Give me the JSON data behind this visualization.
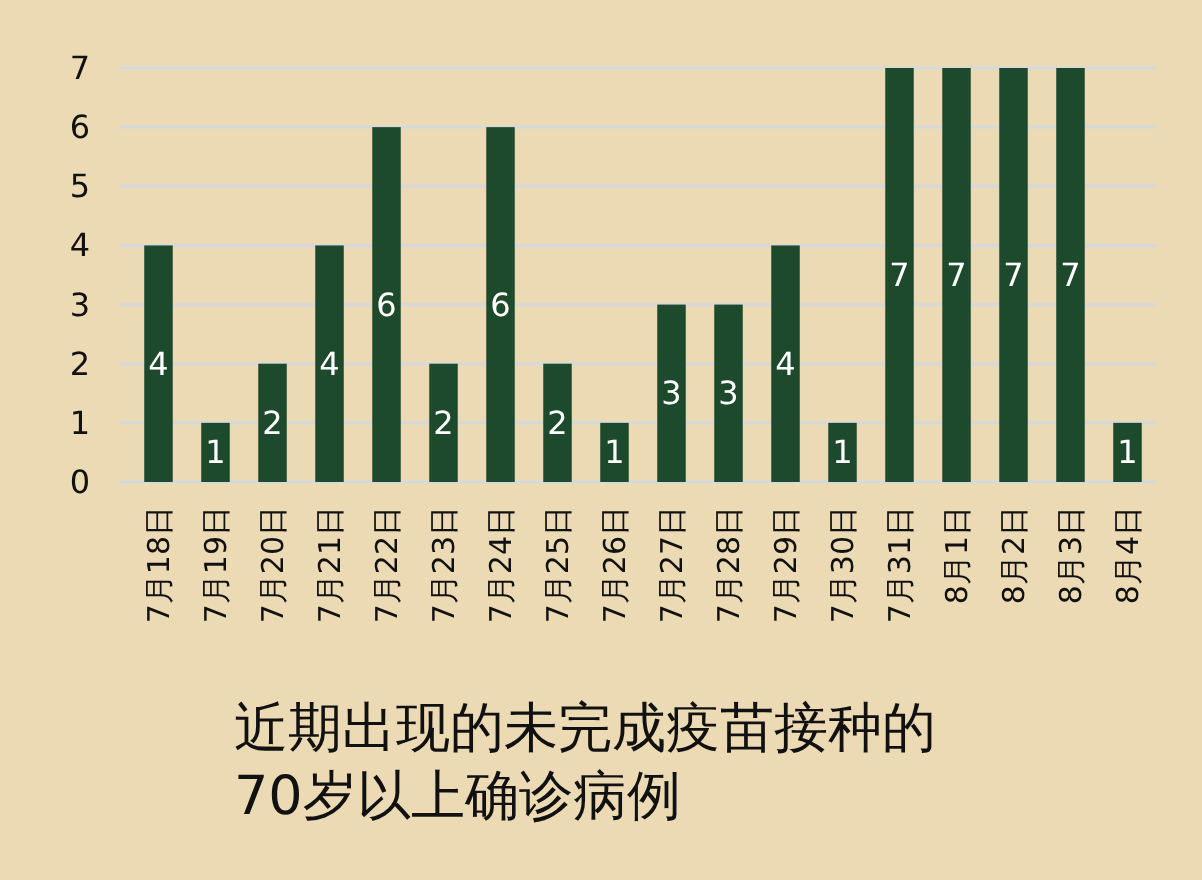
{
  "chart_data": {
    "type": "bar",
    "title": "近期出现的未完成疫苗接种的70岁以上确诊病例",
    "categories": [
      "7月18日",
      "7月19日",
      "7月20日",
      "7月21日",
      "7月22日",
      "7月23日",
      "7月24日",
      "7月25日",
      "7月26日",
      "7月27日",
      "7月28日",
      "7月29日",
      "7月30日",
      "7月31日",
      "8月1日",
      "8月2日",
      "8月3日",
      "8月4日"
    ],
    "values": [
      4,
      1,
      2,
      4,
      6,
      2,
      6,
      2,
      1,
      3,
      3,
      4,
      1,
      7,
      7,
      7,
      7,
      1
    ],
    "color": "#1d4a2c",
    "ylim": [
      0,
      7
    ],
    "yticks": [
      0,
      1,
      2,
      3,
      4,
      5,
      6,
      7
    ],
    "grid": "y",
    "data_labels": true
  }
}
